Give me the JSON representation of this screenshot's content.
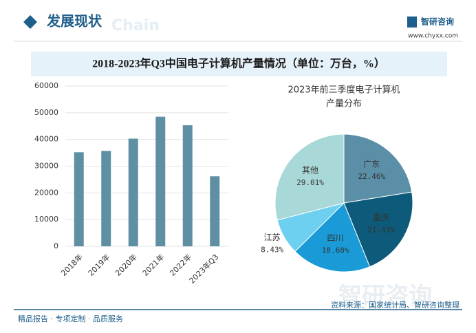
{
  "header": {
    "title": "发展现状",
    "watermark": "Chain",
    "brand": "智研咨询",
    "url": "www.chyxx.com"
  },
  "banner": "2018-2023年Q3中国电子计算机产量情况（单位：万台，%）",
  "chart_data": [
    {
      "type": "bar",
      "categories": [
        "2018年",
        "2019年",
        "2020年",
        "2021年",
        "2022年",
        "2023年Q3"
      ],
      "values": [
        35200,
        35700,
        40300,
        48500,
        45300,
        26200
      ],
      "color": "#5f8fa3",
      "ylim": [
        0,
        60000
      ],
      "yticks": [
        0,
        10000,
        20000,
        30000,
        40000,
        50000,
        60000
      ],
      "grid": true
    },
    {
      "type": "pie",
      "title": [
        "2023年前三季度电子计算机",
        "产量分布"
      ],
      "categories": [
        "广东",
        "重庆",
        "四川",
        "江苏",
        "其他"
      ],
      "values": [
        22.46,
        21.41,
        18.68,
        8.43,
        29.01
      ],
      "value_labels": [
        "22.46%",
        "21.41%",
        "18.68%",
        "8.43%",
        "29.01%"
      ],
      "colors": [
        "#5b8fa8",
        "#0e5a7a",
        "#1a9ad6",
        "#6dd0f0",
        "#a8d8d8"
      ]
    }
  ],
  "footer": {
    "left": "精品报告 · 专项定制 · 品质服务",
    "right": "资料来源：国家统计局、智研咨询整理",
    "watermark": "智研咨询"
  }
}
